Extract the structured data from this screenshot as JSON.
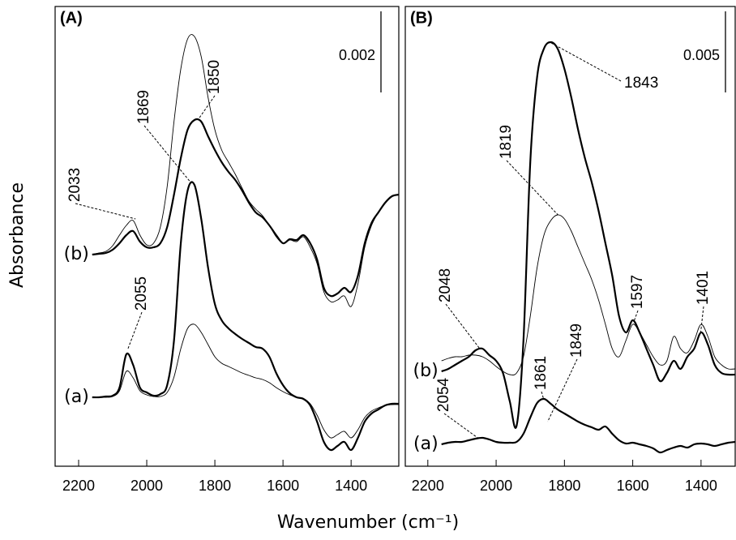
{
  "chart_data": [
    {
      "type": "line",
      "title": "(A)",
      "ylabel": "Absorbance",
      "xlabel": "Wavenumber (cm⁻¹)",
      "xlim": [
        2269,
        1260
      ],
      "ylim": [
        0,
        0.01134
      ],
      "xticks": [
        2200,
        2000,
        1800,
        1600,
        1400
      ],
      "scale_bar": 0.002,
      "x": [
        2160,
        2140,
        2120,
        2100,
        2080,
        2060,
        2040,
        2020,
        2000,
        1980,
        1960,
        1940,
        1920,
        1900,
        1880,
        1860,
        1840,
        1820,
        1800,
        1780,
        1760,
        1740,
        1720,
        1700,
        1680,
        1660,
        1640,
        1620,
        1600,
        1580,
        1560,
        1540,
        1520,
        1500,
        1480,
        1460,
        1440,
        1420,
        1400,
        1380,
        1360,
        1340,
        1320,
        1300,
        1280,
        1260
      ],
      "series": [
        {
          "color": "#000000",
          "width": 0.9,
          "values": [
            0.0017,
            0.0017,
            0.0017,
            0.00172,
            0.00186,
            0.00234,
            0.00218,
            0.00186,
            0.00176,
            0.00172,
            0.00172,
            0.00182,
            0.0022,
            0.0029,
            0.0034,
            0.0035,
            0.0033,
            0.003,
            0.0027,
            0.00254,
            0.00246,
            0.00238,
            0.0023,
            0.00224,
            0.00218,
            0.00214,
            0.00206,
            0.00194,
            0.00184,
            0.00176,
            0.0017,
            0.00166,
            0.00154,
            0.00126,
            0.0009,
            0.0007,
            0.00078,
            0.00086,
            0.0007,
            0.0009,
            0.0012,
            0.00136,
            0.00144,
            0.0015,
            0.00152,
            0.00152
          ]
        },
        {
          "name": "(a)",
          "color": "#000000",
          "width": 2.2,
          "values": [
            0.0017,
            0.0017,
            0.00172,
            0.00174,
            0.00194,
            0.00276,
            0.0025,
            0.00194,
            0.00182,
            0.00174,
            0.00178,
            0.002,
            0.0031,
            0.0055,
            0.0068,
            0.00694,
            0.0061,
            0.0049,
            0.004,
            0.0036,
            0.0034,
            0.00326,
            0.00314,
            0.00304,
            0.00294,
            0.0029,
            0.0027,
            0.0023,
            0.002,
            0.0018,
            0.0017,
            0.00166,
            0.0015,
            0.0011,
            0.0006,
            0.0004,
            0.0005,
            0.0006,
            0.0004,
            0.0007,
            0.0011,
            0.0013,
            0.0014,
            0.0015,
            0.00154,
            0.00154
          ]
        },
        {
          "color": "#000000",
          "width": 0.9,
          "values": [
            0.00522,
            0.00526,
            0.0053,
            0.00544,
            0.0057,
            0.00594,
            0.00606,
            0.0057,
            0.00546,
            0.0055,
            0.0059,
            0.0069,
            0.0085,
            0.0098,
            0.01054,
            0.0106,
            0.0101,
            0.0091,
            0.0083,
            0.0078,
            0.0075,
            0.0072,
            0.00686,
            0.00654,
            0.00634,
            0.00618,
            0.00594,
            0.00566,
            0.0055,
            0.00558,
            0.00554,
            0.00566,
            0.0054,
            0.005,
            0.0043,
            0.00406,
            0.0041,
            0.0042,
            0.00394,
            0.0045,
            0.0054,
            0.00594,
            0.00626,
            0.0065,
            0.00666,
            0.0067
          ]
        },
        {
          "name": "(b)",
          "color": "#000000",
          "width": 2.2,
          "values": [
            0.00522,
            0.00524,
            0.00526,
            0.00534,
            0.0055,
            0.0057,
            0.0058,
            0.00554,
            0.0054,
            0.0054,
            0.0055,
            0.0059,
            0.0067,
            0.0076,
            0.0083,
            0.00854,
            0.0085,
            0.00814,
            0.0078,
            0.0075,
            0.00726,
            0.00706,
            0.0068,
            0.0065,
            0.00626,
            0.00614,
            0.00594,
            0.0057,
            0.0055,
            0.0056,
            0.00558,
            0.0057,
            0.0055,
            0.0051,
            0.0044,
            0.0042,
            0.00426,
            0.0044,
            0.0043,
            0.0047,
            0.0055,
            0.006,
            0.00626,
            0.0065,
            0.00666,
            0.0067
          ]
        }
      ],
      "annotations": [
        {
          "x": 2033
        },
        {
          "x": 2055
        },
        {
          "x": 1869
        },
        {
          "x": 1850
        }
      ]
    },
    {
      "type": "line",
      "title": "(B)",
      "xlim": [
        2266,
        1300
      ],
      "ylim": [
        0,
        0.02835
      ],
      "xticks": [
        2200,
        2000,
        1800,
        1600,
        1400
      ],
      "scale_bar": 0.005,
      "x": [
        2160,
        2140,
        2120,
        2100,
        2080,
        2060,
        2040,
        2020,
        2000,
        1980,
        1960,
        1940,
        1920,
        1900,
        1880,
        1860,
        1840,
        1820,
        1800,
        1780,
        1760,
        1740,
        1720,
        1700,
        1680,
        1660,
        1640,
        1620,
        1600,
        1580,
        1560,
        1540,
        1520,
        1500,
        1480,
        1460,
        1440,
        1420,
        1400,
        1380,
        1360,
        1340,
        1320,
        1300
      ],
      "series": [
        {
          "name": "(a)",
          "color": "#000000",
          "width": 2.2,
          "values": [
            0.00135,
            0.00145,
            0.0015,
            0.0015,
            0.0016,
            0.0017,
            0.00175,
            0.00165,
            0.0015,
            0.00145,
            0.00145,
            0.0015,
            0.002,
            0.003,
            0.0039,
            0.00415,
            0.00385,
            0.0035,
            0.00325,
            0.003,
            0.00275,
            0.00255,
            0.0024,
            0.00225,
            0.00245,
            0.002,
            0.0016,
            0.0014,
            0.00145,
            0.00135,
            0.00125,
            0.0011,
            0.00085,
            0.001,
            0.00115,
            0.00125,
            0.00115,
            0.00135,
            0.0014,
            0.00135,
            0.00125,
            0.00135,
            0.00145,
            0.0015
          ]
        },
        {
          "color": "#000000",
          "width": 0.9,
          "values": [
            0.0065,
            0.00665,
            0.00675,
            0.00675,
            0.00685,
            0.00685,
            0.00675,
            0.0065,
            0.00615,
            0.00585,
            0.00565,
            0.00575,
            0.00675,
            0.00925,
            0.01225,
            0.01425,
            0.01515,
            0.0155,
            0.01525,
            0.0145,
            0.0135,
            0.0125,
            0.0115,
            0.01025,
            0.00875,
            0.00725,
            0.00675,
            0.00775,
            0.00875,
            0.00825,
            0.0075,
            0.00675,
            0.00625,
            0.0065,
            0.008,
            0.00725,
            0.007,
            0.00775,
            0.00875,
            0.008,
            0.00675,
            0.00625,
            0.006,
            0.006
          ]
        },
        {
          "name": "(b)",
          "color": "#000000",
          "width": 2.2,
          "values": [
            0.00585,
            0.006,
            0.00625,
            0.0065,
            0.00675,
            0.00715,
            0.00725,
            0.00685,
            0.0065,
            0.00575,
            0.004,
            0.0025,
            0.00775,
            0.01875,
            0.024,
            0.02575,
            0.02615,
            0.02575,
            0.0245,
            0.02275,
            0.02075,
            0.019,
            0.0175,
            0.01575,
            0.01375,
            0.01175,
            0.00925,
            0.00825,
            0.009,
            0.00825,
            0.00725,
            0.00625,
            0.00525,
            0.00575,
            0.0065,
            0.006,
            0.00675,
            0.00725,
            0.00825,
            0.0075,
            0.00625,
            0.00575,
            0.00565,
            0.00565
          ]
        }
      ],
      "annotations": [
        {
          "x": 2048
        },
        {
          "x": 2054
        },
        {
          "x": 1861
        },
        {
          "x": 1849
        },
        {
          "x": 1819
        },
        {
          "x": 1843
        },
        {
          "x": 1597
        },
        {
          "x": 1401
        }
      ]
    }
  ]
}
